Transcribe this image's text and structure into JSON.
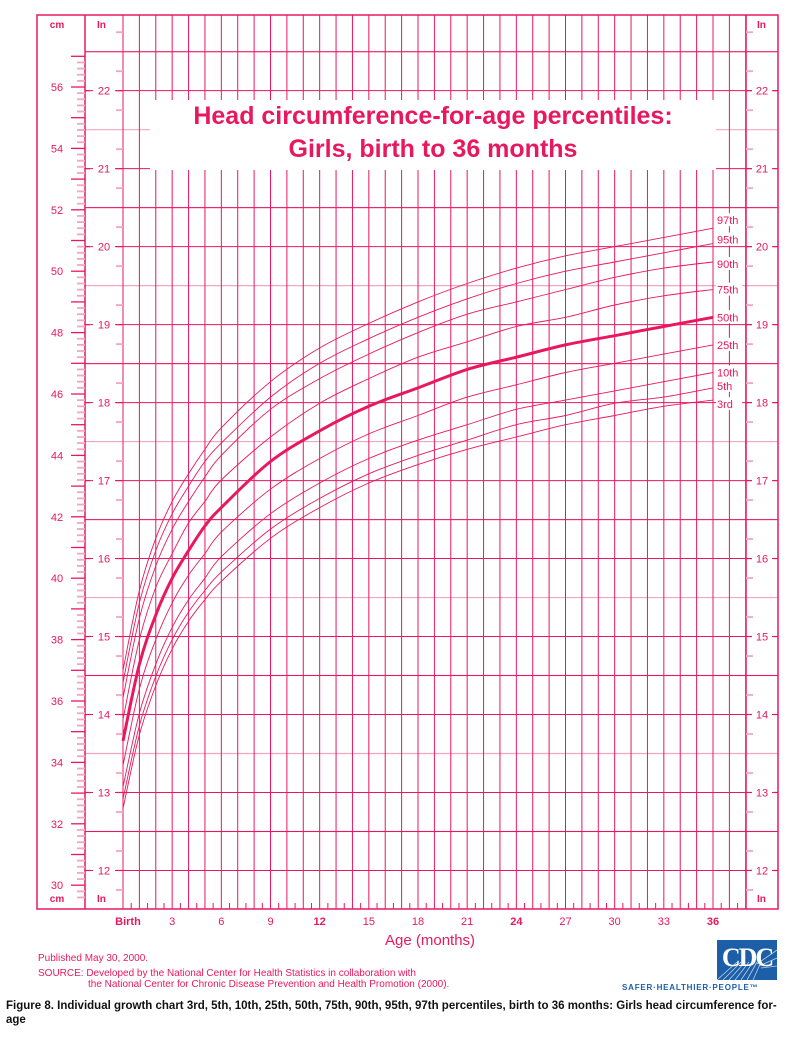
{
  "chart_data": {
    "type": "line",
    "title": "Head circumference-for-age percentiles: Girls, birth to 36 months",
    "title_lines": [
      "Head circumference-for-age percentiles:",
      "Girls, birth to 36 months"
    ],
    "xlabel": "Age (months)",
    "ylabel_left": "cm",
    "ylabel_right": "In",
    "x_ticks": [
      "Birth",
      "3",
      "6",
      "9",
      "12",
      "15",
      "18",
      "21",
      "24",
      "27",
      "30",
      "33",
      "36"
    ],
    "cm_ticks": [
      56,
      54,
      52,
      50,
      48,
      46,
      44,
      42,
      40,
      38,
      36,
      34,
      32,
      30
    ],
    "in_ticks": [
      22,
      21,
      20,
      19,
      18,
      17,
      16,
      15,
      14,
      13,
      12
    ],
    "xlim": [
      0,
      36
    ],
    "ylim_cm": [
      29.6,
      57.0
    ],
    "grid": true,
    "legend_position": "right end of curves",
    "x": [
      0,
      1,
      2,
      3,
      4,
      5,
      6,
      9,
      12,
      15,
      18,
      21,
      24,
      27,
      30,
      33,
      36
    ],
    "series": [
      {
        "name": "97th",
        "values": [
          37.0,
          39.6,
          41.3,
          42.5,
          43.4,
          44.2,
          44.9,
          46.4,
          47.5,
          48.3,
          49.0,
          49.6,
          50.1,
          50.5,
          50.8,
          51.1,
          51.4
        ]
      },
      {
        "name": "95th",
        "values": [
          36.6,
          39.2,
          40.9,
          42.1,
          43.0,
          43.8,
          44.4,
          45.9,
          47.0,
          47.8,
          48.5,
          49.1,
          49.6,
          50.0,
          50.3,
          50.6,
          50.9
        ]
      },
      {
        "name": "90th",
        "values": [
          36.1,
          38.7,
          40.4,
          41.6,
          42.5,
          43.3,
          44.0,
          45.5,
          46.5,
          47.3,
          48.0,
          48.6,
          49.0,
          49.4,
          49.8,
          50.1,
          50.3
        ]
      },
      {
        "name": "75th",
        "values": [
          35.4,
          38.0,
          39.7,
          40.8,
          41.8,
          42.5,
          43.2,
          44.6,
          45.7,
          46.5,
          47.2,
          47.7,
          48.2,
          48.5,
          48.9,
          49.2,
          49.4
        ]
      },
      {
        "name": "50th",
        "values": [
          34.7,
          37.2,
          38.8,
          40.0,
          40.9,
          41.7,
          42.3,
          43.8,
          44.8,
          45.6,
          46.2,
          46.8,
          47.2,
          47.6,
          47.9,
          48.2,
          48.5
        ]
      },
      {
        "name": "25th",
        "values": [
          33.9,
          36.4,
          38.0,
          39.2,
          40.1,
          40.8,
          41.5,
          42.9,
          43.9,
          44.7,
          45.3,
          45.9,
          46.3,
          46.7,
          47.0,
          47.3,
          47.6
        ]
      },
      {
        "name": "10th",
        "values": [
          33.2,
          35.6,
          37.2,
          38.4,
          39.3,
          40.0,
          40.7,
          42.1,
          43.1,
          43.9,
          44.5,
          45.0,
          45.5,
          45.8,
          46.1,
          46.4,
          46.7
        ]
      },
      {
        "name": "5th",
        "values": [
          32.8,
          35.2,
          36.8,
          38.0,
          38.9,
          39.6,
          40.2,
          41.6,
          42.6,
          43.4,
          44.0,
          44.5,
          45.0,
          45.3,
          45.7,
          45.9,
          46.2
        ]
      },
      {
        "name": "3rd",
        "values": [
          32.5,
          34.9,
          36.5,
          37.7,
          38.6,
          39.3,
          39.9,
          41.3,
          42.3,
          43.1,
          43.7,
          44.2,
          44.6,
          45.0,
          45.3,
          45.6,
          45.8
        ]
      }
    ],
    "highlight_series": "50th"
  },
  "axis": {
    "cm_unit_top": "cm",
    "cm_unit_bottom": "cm",
    "in_unit_top_left": "In",
    "in_unit_bottom_left": "In",
    "in_unit_top_right": "In",
    "in_unit_bottom_right": "In",
    "age_label": "Age (months)"
  },
  "footer": {
    "published": "Published May 30, 2000.",
    "source_line1": "SOURCE: Developed by the National Center for Health Statistics in collaboration with",
    "source_line2": "the National Center for Chronic Disease Prevention and Health Promotion (2000).",
    "logo_text": "CDC",
    "tagline": "SAFER·HEALTHIER·PEOPLE™",
    "caption": "Figure 8. Individual growth chart 3rd, 5th, 10th, 25th, 50th, 75th, 90th, 95th, 97th percentiles, birth to 36 months: Girls head circumference for-age"
  },
  "colors": {
    "primary": "#e8185f",
    "light_grid": "#f4a6bf",
    "logo_blue": "#1c5fa8",
    "caption": "#111111"
  }
}
